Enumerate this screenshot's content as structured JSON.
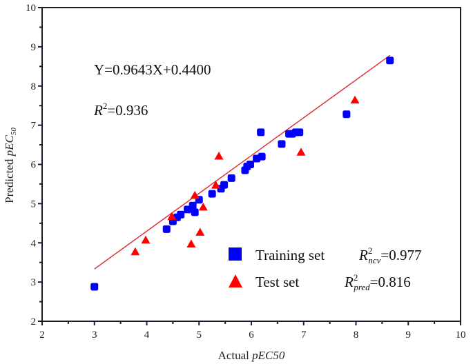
{
  "chart_data": {
    "type": "scatter",
    "title": "",
    "xlabel": "Actual pEC50",
    "ylabel": "Predicted pEC50",
    "xlim": [
      2,
      10
    ],
    "ylim": [
      2,
      10
    ],
    "xticks": [
      2,
      3,
      4,
      5,
      6,
      7,
      8,
      9,
      10
    ],
    "yticks": [
      2,
      3,
      4,
      5,
      6,
      7,
      8,
      9,
      10
    ],
    "grid": false,
    "legend_position": "lower right",
    "series": [
      {
        "name": "Training set",
        "marker": "square",
        "color": "#0000ff",
        "stat_label": "R2ncv=0.977",
        "points": [
          [
            3.0,
            2.88
          ],
          [
            4.38,
            4.35
          ],
          [
            4.5,
            4.55
          ],
          [
            4.58,
            4.65
          ],
          [
            4.65,
            4.72
          ],
          [
            4.78,
            4.85
          ],
          [
            4.88,
            4.95
          ],
          [
            4.92,
            4.78
          ],
          [
            5.0,
            5.1
          ],
          [
            5.25,
            5.25
          ],
          [
            5.42,
            5.38
          ],
          [
            5.48,
            5.48
          ],
          [
            5.62,
            5.65
          ],
          [
            5.88,
            5.85
          ],
          [
            5.92,
            5.95
          ],
          [
            5.98,
            6.0
          ],
          [
            6.1,
            6.15
          ],
          [
            6.2,
            6.2
          ],
          [
            6.18,
            6.82
          ],
          [
            6.58,
            6.52
          ],
          [
            6.72,
            6.78
          ],
          [
            6.78,
            6.78
          ],
          [
            6.85,
            6.82
          ],
          [
            6.92,
            6.82
          ],
          [
            7.82,
            7.28
          ],
          [
            8.65,
            8.65
          ]
        ]
      },
      {
        "name": "Test set",
        "marker": "triangle",
        "color": "#ff0000",
        "stat_label": "R2pred=0.816",
        "points": [
          [
            3.78,
            3.78
          ],
          [
            3.98,
            4.08
          ],
          [
            4.48,
            4.68
          ],
          [
            4.85,
            3.98
          ],
          [
            4.92,
            5.22
          ],
          [
            5.02,
            4.28
          ],
          [
            5.08,
            4.92
          ],
          [
            5.32,
            5.48
          ],
          [
            5.38,
            6.22
          ],
          [
            6.95,
            6.32
          ],
          [
            7.98,
            7.65
          ]
        ]
      }
    ],
    "fit_line": {
      "slope": 0.9643,
      "intercept": 0.44,
      "x_range": [
        3.0,
        8.65
      ],
      "color": "#d9343a"
    },
    "annotations": {
      "equation": "Y=0.9643X+0.4400",
      "r2": "R2=0.936"
    }
  },
  "labels": {
    "x_axis_prefix": "Actual ",
    "x_axis_italic": "pEC50",
    "y_axis_prefix": "Predicted ",
    "y_axis_italic": "pEC",
    "y_axis_sub": "50",
    "equation": "Y=0.9643X+0.4400",
    "r2_letter": "R",
    "r2_sup": "2",
    "r2_value": "=0.936",
    "legend_training": "Training set",
    "legend_test": "Test set",
    "ncv_letter": "R",
    "ncv_sup": "2",
    "ncv_sub": "ncv",
    "ncv_value": "=0.977",
    "pred_letter": "R",
    "pred_sup": "2",
    "pred_sub": "pred",
    "pred_value": "=0.816"
  }
}
